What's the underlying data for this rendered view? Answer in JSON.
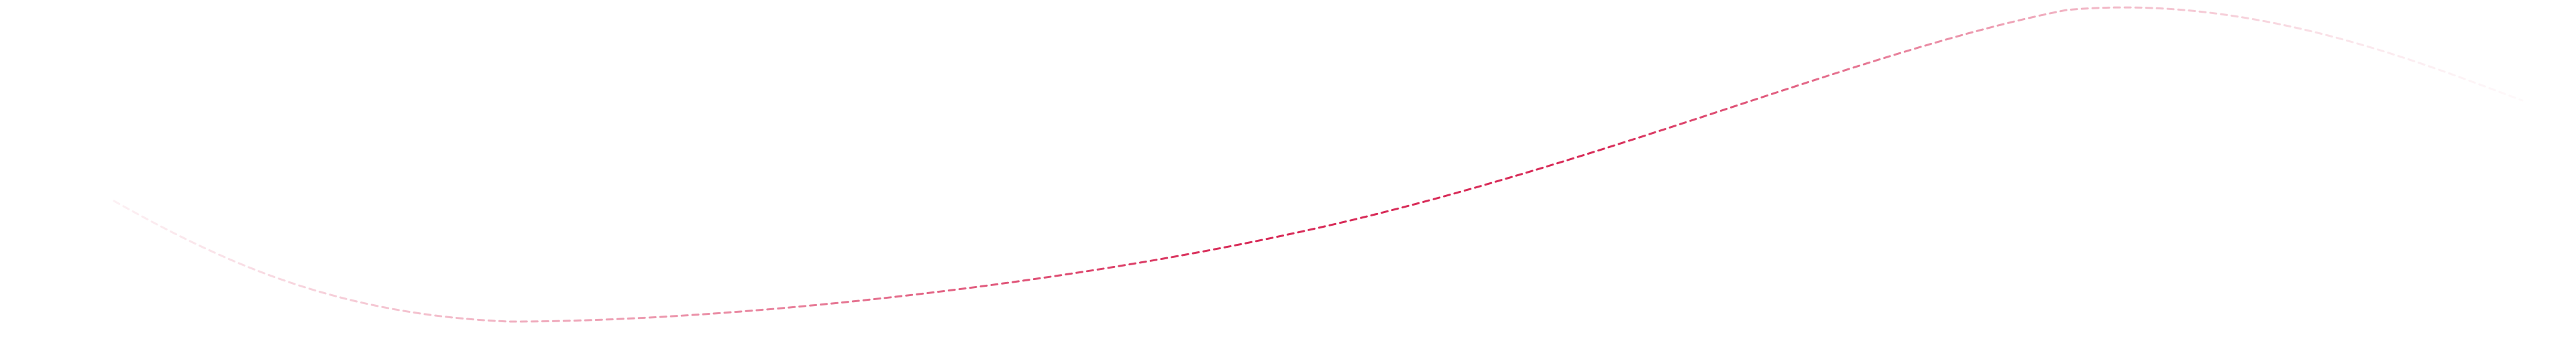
{
  "decoration": {
    "type": "dashed-wave-line",
    "stroke_color": "#d6204f",
    "icon": "wave-decoration"
  }
}
